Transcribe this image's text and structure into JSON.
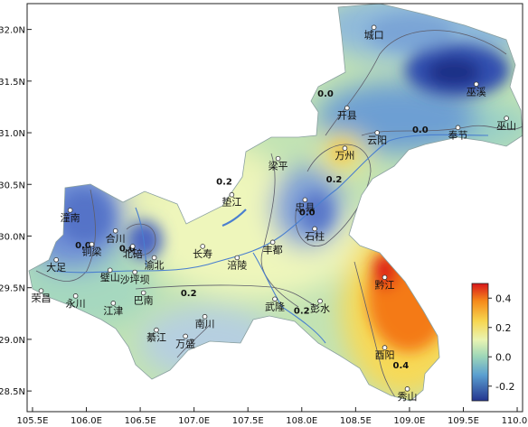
{
  "map": {
    "projection": "lon-lat",
    "lon_range": [
      105.45,
      110.05
    ],
    "lat_range": [
      28.3,
      32.25
    ],
    "lon_ticks": [
      "105.5E",
      "106.0E",
      "106.5E",
      "107.0E",
      "107.5E",
      "108.0E",
      "108.5E",
      "109.0E",
      "109.5E",
      "110.0E"
    ],
    "lat_ticks": [
      "28.5N",
      "29.0N",
      "29.5N",
      "30.0N",
      "30.5N",
      "31.0N",
      "31.5N",
      "32.0N"
    ],
    "colors": {
      "very_high": "#e01e0e",
      "high": "#f67b16",
      "mid_high": "#f6c94a",
      "mid": "#eef3b0",
      "base": "#bfe2b2",
      "low": "#86c8c6",
      "very_low": "#3555bf",
      "river": "#4a7fcf"
    }
  },
  "cities": [
    {
      "name": "城口",
      "lon": 108.67,
      "lat": 31.95
    },
    {
      "name": "巫溪",
      "lon": 109.62,
      "lat": 31.4
    },
    {
      "name": "开县",
      "lon": 108.42,
      "lat": 31.17
    },
    {
      "name": "云阳",
      "lon": 108.7,
      "lat": 30.93
    },
    {
      "name": "奉节",
      "lon": 109.45,
      "lat": 30.98
    },
    {
      "name": "巫山",
      "lon": 109.9,
      "lat": 31.07
    },
    {
      "name": "万州",
      "lon": 108.4,
      "lat": 30.78
    },
    {
      "name": "梁平",
      "lon": 107.78,
      "lat": 30.68
    },
    {
      "name": "垫江",
      "lon": 107.35,
      "lat": 30.33
    },
    {
      "name": "忠县",
      "lon": 108.03,
      "lat": 30.28
    },
    {
      "name": "石柱",
      "lon": 108.12,
      "lat": 30.0
    },
    {
      "name": "潼南",
      "lon": 105.85,
      "lat": 30.18
    },
    {
      "name": "合川",
      "lon": 106.27,
      "lat": 29.98
    },
    {
      "name": "铜梁",
      "lon": 106.05,
      "lat": 29.85
    },
    {
      "name": "北碚",
      "lon": 106.43,
      "lat": 29.83
    },
    {
      "name": "大足",
      "lon": 105.72,
      "lat": 29.7
    },
    {
      "name": "璧山",
      "lon": 106.22,
      "lat": 29.6
    },
    {
      "name": "沙坪坝",
      "lon": 106.45,
      "lat": 29.58
    },
    {
      "name": "渝北",
      "lon": 106.63,
      "lat": 29.72
    },
    {
      "name": "长寿",
      "lon": 107.08,
      "lat": 29.83
    },
    {
      "name": "丰都",
      "lon": 107.73,
      "lat": 29.87
    },
    {
      "name": "涪陵",
      "lon": 107.4,
      "lat": 29.72
    },
    {
      "name": "荣昌",
      "lon": 105.58,
      "lat": 29.4
    },
    {
      "name": "永川",
      "lon": 105.9,
      "lat": 29.35
    },
    {
      "name": "巴南",
      "lon": 106.53,
      "lat": 29.38
    },
    {
      "name": "江津",
      "lon": 106.25,
      "lat": 29.28
    },
    {
      "name": "武隆",
      "lon": 107.75,
      "lat": 29.32
    },
    {
      "name": "彭水",
      "lon": 108.17,
      "lat": 29.3
    },
    {
      "name": "黔江",
      "lon": 108.77,
      "lat": 29.53
    },
    {
      "name": "南川",
      "lon": 107.1,
      "lat": 29.15
    },
    {
      "name": "綦江",
      "lon": 106.65,
      "lat": 29.02
    },
    {
      "name": "万盛",
      "lon": 106.92,
      "lat": 28.96
    },
    {
      "name": "酉阳",
      "lon": 108.77,
      "lat": 28.85
    },
    {
      "name": "秀山",
      "lon": 108.98,
      "lat": 28.45
    }
  ],
  "contour_labels": [
    {
      "text": "0.0",
      "lon": 108.22,
      "lat": 31.35
    },
    {
      "text": "0.0",
      "lon": 109.1,
      "lat": 31.0
    },
    {
      "text": "0.2",
      "lon": 107.28,
      "lat": 30.5
    },
    {
      "text": "0.2",
      "lon": 108.3,
      "lat": 30.52
    },
    {
      "text": "0.0",
      "lon": 108.05,
      "lat": 30.2
    },
    {
      "text": "0.0",
      "lon": 105.97,
      "lat": 29.88
    },
    {
      "text": "0.0",
      "lon": 106.38,
      "lat": 29.85
    },
    {
      "text": "0.2",
      "lon": 106.95,
      "lat": 29.42
    },
    {
      "text": "0.2",
      "lon": 108.0,
      "lat": 29.25
    },
    {
      "text": "0.4",
      "lon": 108.92,
      "lat": 28.72
    }
  ],
  "colorbar": {
    "range": [
      -0.3,
      0.5
    ],
    "ticks": [
      {
        "value": 0.4,
        "label": "0.4"
      },
      {
        "value": 0.2,
        "label": "0.2"
      },
      {
        "value": 0.0,
        "label": "0.0"
      },
      {
        "value": -0.2,
        "label": "-0.2"
      }
    ]
  }
}
